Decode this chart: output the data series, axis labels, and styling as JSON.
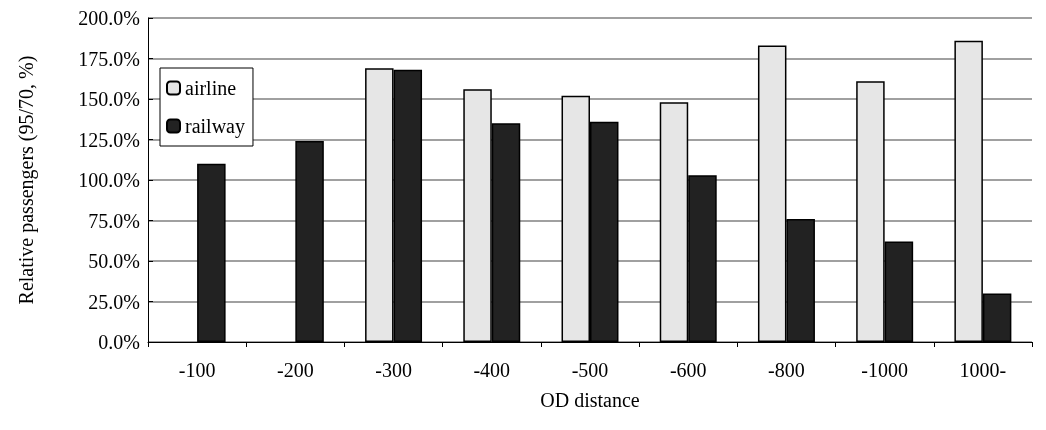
{
  "chart_data": {
    "type": "bar",
    "xlabel": "OD distance",
    "ylabel": "Relative passengers (95/70, %)",
    "categories": [
      "-100",
      "-200",
      "-300",
      "-400",
      "-500",
      "-600",
      "-800",
      "-1000",
      "1000-"
    ],
    "series": [
      {
        "name": "airline",
        "color": "#e6e6e6",
        "values": [
          null,
          null,
          169,
          156,
          152,
          148,
          183,
          161,
          186
        ]
      },
      {
        "name": "railway",
        "color": "#222222",
        "values": [
          110,
          124,
          168,
          135,
          136,
          103,
          76,
          62,
          30
        ]
      }
    ],
    "ylim": [
      0,
      200
    ],
    "yticks": [
      {
        "value": 0,
        "label": "0.0%"
      },
      {
        "value": 25,
        "label": "25.0%"
      },
      {
        "value": 50,
        "label": "50.0%"
      },
      {
        "value": 75,
        "label": "75.0%"
      },
      {
        "value": 100,
        "label": "100.0%"
      },
      {
        "value": 125,
        "label": "125.0%"
      },
      {
        "value": 150,
        "label": "150.0%"
      },
      {
        "value": 175,
        "label": "175.0%"
      },
      {
        "value": 200,
        "label": "200.0%"
      }
    ],
    "grid": "y",
    "legend": "top left"
  }
}
